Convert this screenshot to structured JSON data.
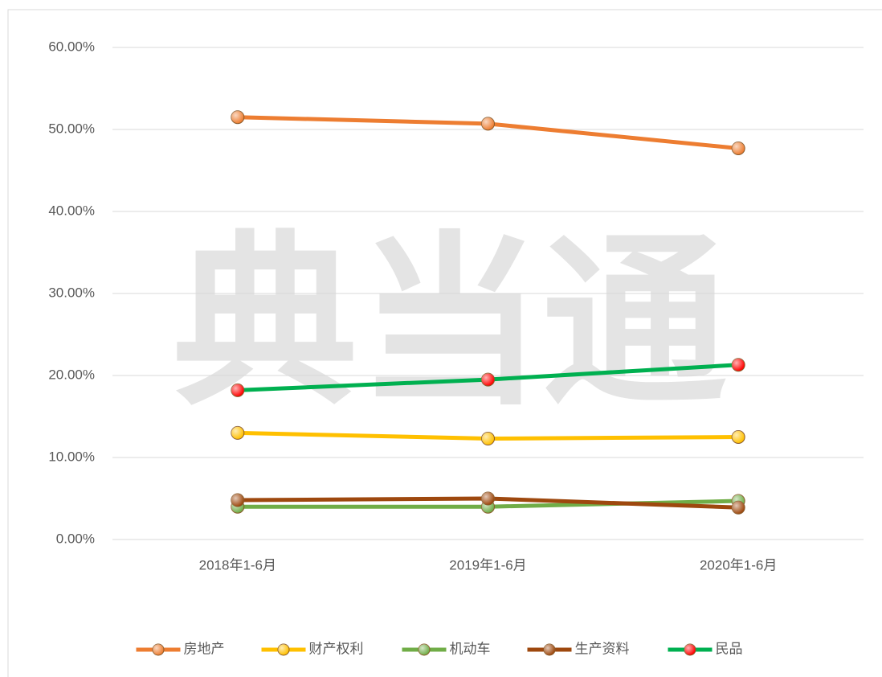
{
  "watermark": "典当通",
  "chart_data": {
    "type": "line",
    "categories": [
      "2018年1-6月",
      "2019年1-6月",
      "2020年1-6月"
    ],
    "series": [
      {
        "name": "房地产",
        "color": "#ED7D31",
        "marker_color": "#ED7D31",
        "values": [
          51.5,
          50.7,
          47.7
        ]
      },
      {
        "name": "财产权利",
        "color": "#FFC000",
        "marker_color": "#FFC000",
        "values": [
          13.0,
          12.3,
          12.5
        ]
      },
      {
        "name": "机动车",
        "color": "#70AD47",
        "marker_color": "#70AD47",
        "values": [
          4.0,
          4.0,
          4.7
        ]
      },
      {
        "name": "生产资料",
        "color": "#9E480E",
        "marker_color": "#9E480E",
        "values": [
          4.8,
          5.0,
          3.9
        ]
      },
      {
        "name": "民品",
        "color": "#00B050",
        "marker_color": "#FF0000",
        "values": [
          18.2,
          19.5,
          21.3
        ]
      }
    ],
    "ylim": [
      0,
      60
    ],
    "yticks": [
      {
        "value": 0,
        "label": "0.00%"
      },
      {
        "value": 10,
        "label": "10.00%"
      },
      {
        "value": 20,
        "label": "20.00%"
      },
      {
        "value": 30,
        "label": "30.00%"
      },
      {
        "value": 40,
        "label": "40.00%"
      },
      {
        "value": 50,
        "label": "50.00%"
      },
      {
        "value": 60,
        "label": "60.00%"
      }
    ],
    "grid": true,
    "legend": "bottom"
  }
}
